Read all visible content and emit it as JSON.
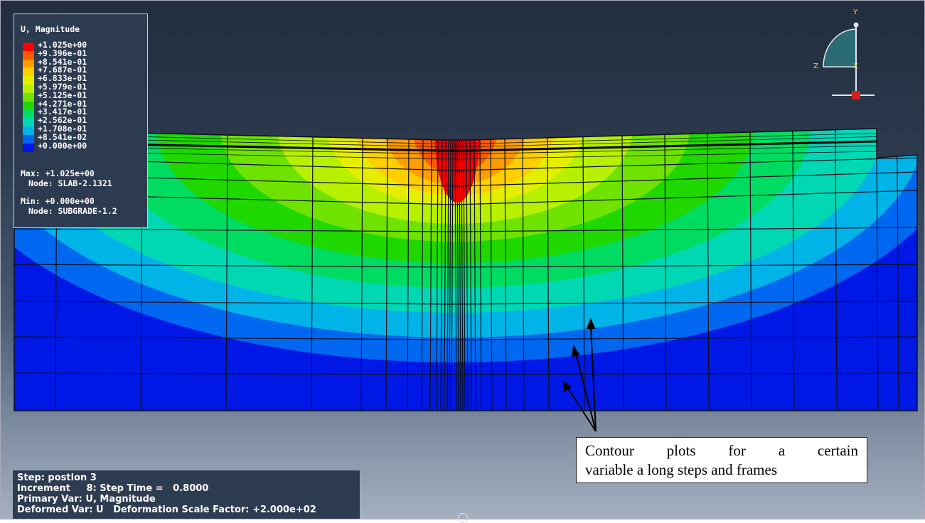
{
  "legend": {
    "title": "U, Magnitude",
    "values": [
      "+1.025e+00",
      "+9.396e-01",
      "+8.541e-01",
      "+7.687e-01",
      "+6.833e-01",
      "+5.979e-01",
      "+5.125e-01",
      "+4.271e-01",
      "+3.417e-01",
      "+2.562e-01",
      "+1.708e-01",
      "+8.541e-02",
      "+0.000e+00"
    ],
    "colors": [
      "#ff0000",
      "#ff5a00",
      "#ff9c00",
      "#ffcf00",
      "#e6ee00",
      "#b7f000",
      "#6fe200",
      "#1fd800",
      "#00dc62",
      "#00d8b4",
      "#00b4e8",
      "#0068f0",
      "#0018e6"
    ],
    "max_line": "Max: +1.025e+00",
    "max_node": "Node: SLAB-2.1321",
    "min_line": "Min: +0.000e+00",
    "min_node": "Node: SUBGRADE-1.2"
  },
  "triad": {
    "y": "Y",
    "z": "Z",
    "x": "X"
  },
  "status": {
    "step": "Step: postion 3",
    "increment": "Increment     8: Step Time =   0.8000",
    "primary": "Primary Var: U, Magnitude",
    "deformed": "Deformed Var: U   Deformation Scale Factor: +2.000e+02"
  },
  "annotation": {
    "line1": "Contour plots for a certain",
    "line2": "variable a long steps and frames"
  }
}
